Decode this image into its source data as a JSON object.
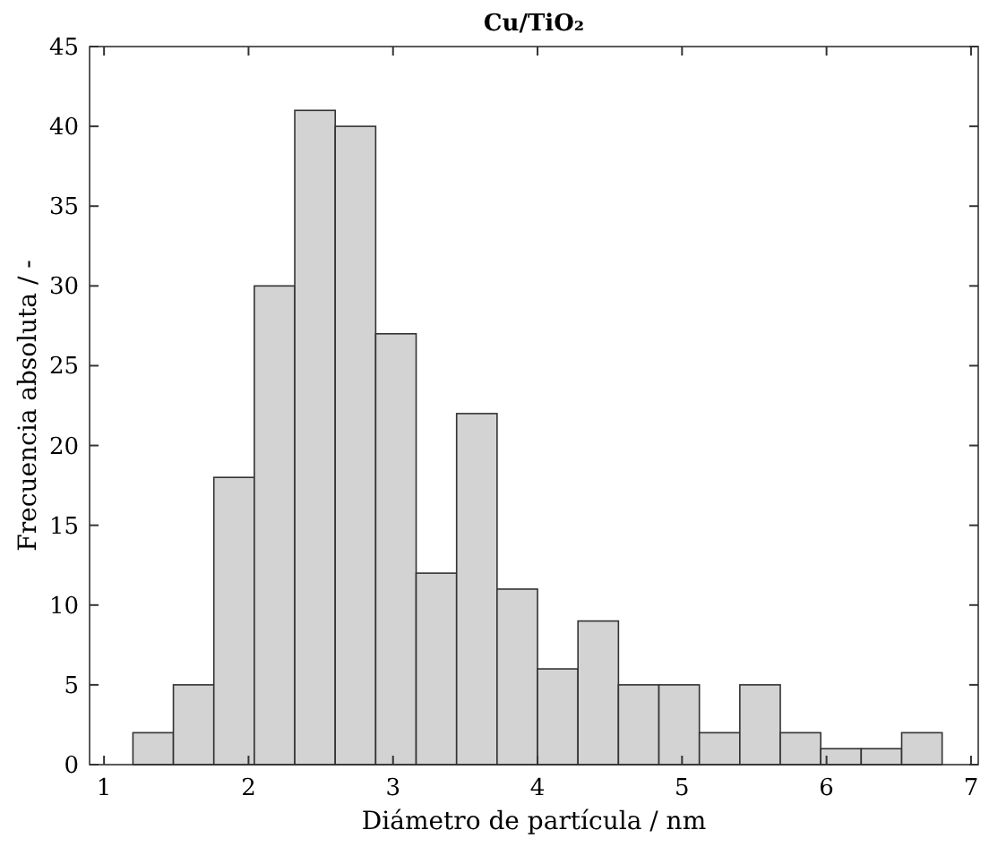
{
  "chart_data": {
    "type": "histogram",
    "title": "Cu/TiO₂",
    "xlabel": "Diámetro de partícula / nm",
    "ylabel": "Frecuencia absoluta / -",
    "bins": [
      1.2,
      1.48,
      1.76,
      2.04,
      2.32,
      2.6,
      2.88,
      3.16,
      3.44,
      3.72,
      4.0,
      4.28,
      4.56,
      4.84,
      5.12,
      5.4,
      5.68,
      5.96,
      6.24,
      6.52,
      6.8
    ],
    "values": [
      2,
      5,
      18,
      30,
      41,
      40,
      27,
      12,
      22,
      11,
      6,
      9,
      5,
      5,
      2,
      5,
      2,
      1,
      1,
      2
    ],
    "color": "#d3d3d3",
    "xlim": [
      0.9,
      7.05
    ],
    "xticks": [
      1,
      2,
      3,
      4,
      5,
      6,
      7
    ],
    "ylim": [
      0,
      45
    ],
    "yticks": [
      0,
      5,
      10,
      15,
      20,
      25,
      30,
      35,
      40,
      45
    ],
    "grid": false
  }
}
